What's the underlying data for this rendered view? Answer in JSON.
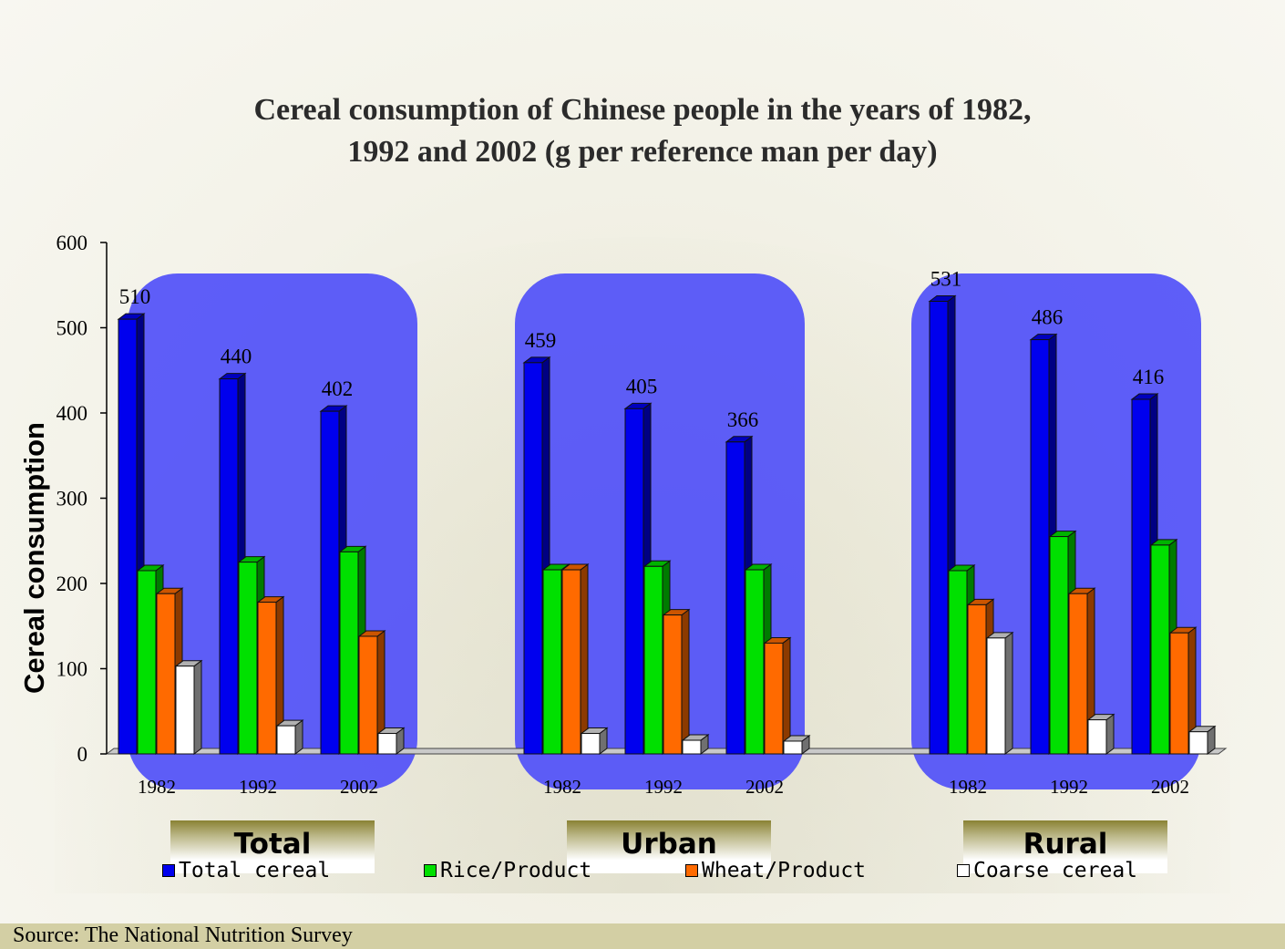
{
  "title": {
    "line1": "Cereal consumption of Chinese people in the years of 1982,",
    "line2": "1992 and 2002 (g per reference man per day)"
  },
  "chart_data": {
    "type": "bar",
    "title": "Cereal consumption of Chinese people in the years of 1982, 1992 and 2002 (g per reference man per day)",
    "ylabel": "Cereal consumption",
    "ylim": [
      0,
      600
    ],
    "yticks": [
      0,
      100,
      200,
      300,
      400,
      500,
      600
    ],
    "groups": [
      "Total",
      "Urban",
      "Rural"
    ],
    "years": [
      "1982",
      "1992",
      "2002"
    ],
    "series": [
      {
        "name": "Total cereal",
        "color": "#0000ee",
        "values": [
          [
            510,
            440,
            402
          ],
          [
            459,
            405,
            366
          ],
          [
            531,
            486,
            416
          ]
        ]
      },
      {
        "name": "Rice/Product",
        "color": "#00e000",
        "values": [
          [
            215,
            225,
            237
          ],
          [
            216,
            220,
            216
          ],
          [
            215,
            255,
            245
          ]
        ]
      },
      {
        "name": "Wheat/Product",
        "color": "#ff6a00",
        "values": [
          [
            188,
            178,
            138
          ],
          [
            216,
            163,
            130
          ],
          [
            175,
            188,
            142
          ]
        ]
      },
      {
        "name": "Coarse cereal",
        "color": "#ffffff",
        "values": [
          [
            103,
            33,
            24
          ],
          [
            24,
            16,
            15
          ],
          [
            136,
            40,
            26
          ]
        ]
      }
    ],
    "data_labels_series": "Total cereal",
    "legend_position": "bottom",
    "grid": false
  },
  "source": "Source: The National Nutrition Survey"
}
